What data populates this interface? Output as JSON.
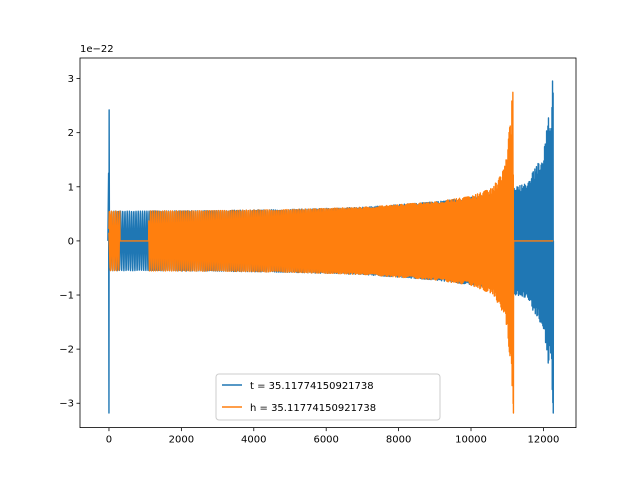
{
  "chart_data": {
    "type": "line",
    "title": "",
    "xlabel": "",
    "ylabel": "",
    "xlim": [
      -800,
      12900
    ],
    "ylim": [
      -3.45,
      3.38
    ],
    "y_scale_label": "1e−22",
    "x_ticks": [
      0,
      2000,
      4000,
      6000,
      8000,
      10000,
      12000
    ],
    "x_tick_labels": [
      "0",
      "2000",
      "4000",
      "6000",
      "8000",
      "10000",
      "12000"
    ],
    "y_ticks": [
      -3,
      -2,
      -1,
      0,
      1,
      2,
      3
    ],
    "y_tick_labels": [
      "−3",
      "−2",
      "−1",
      "0",
      "1",
      "2",
      "3"
    ],
    "grid": false,
    "legend_position": "lower center",
    "series": [
      {
        "name": "t = 35.11774150921738",
        "color": "#1f77b4",
        "description": "chirp waveform, merger near x=12270, initial spike near x=0",
        "envelope": [
          [
            0,
            0.55
          ],
          [
            1100,
            0.55
          ],
          [
            3000,
            0.56
          ],
          [
            5000,
            0.58
          ],
          [
            7000,
            0.62
          ],
          [
            9000,
            0.72
          ],
          [
            10500,
            0.85
          ],
          [
            11500,
            1.05
          ],
          [
            12000,
            1.6
          ],
          [
            12200,
            2.6
          ],
          [
            12270,
            3.1
          ]
        ]
      },
      {
        "name": "h = 35.11774150921738",
        "color": "#ff7f0e",
        "description": "chirp waveform, merger near x=11170, flat after",
        "envelope": [
          [
            0,
            0.55
          ],
          [
            3000,
            0.56
          ],
          [
            5000,
            0.58
          ],
          [
            7000,
            0.62
          ],
          [
            9000,
            0.72
          ],
          [
            10000,
            0.82
          ],
          [
            10600,
            0.98
          ],
          [
            10950,
            1.4
          ],
          [
            11100,
            2.3
          ],
          [
            11170,
            3.1
          ]
        ]
      }
    ]
  }
}
